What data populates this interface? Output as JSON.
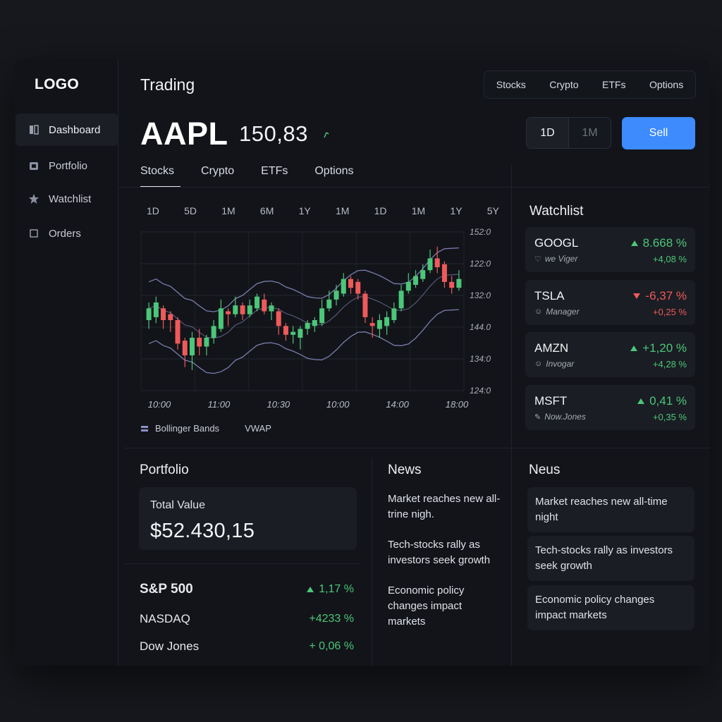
{
  "sidebar": {
    "logo": "LOGO",
    "items": [
      {
        "label": "Dashboard",
        "icon": "dashboard-icon",
        "active": true
      },
      {
        "label": "Portfolio",
        "icon": "portfolio-icon",
        "active": false
      },
      {
        "label": "Watchlist",
        "icon": "star-icon",
        "active": false
      },
      {
        "label": "Orders",
        "icon": "orders-icon",
        "active": false
      }
    ]
  },
  "header": {
    "title": "Trading",
    "top_tabs": [
      "Stocks",
      "Crypto",
      "ETFs",
      "Options"
    ]
  },
  "quote": {
    "symbol": "AAPL",
    "price": "150,83",
    "trend_icon": "up-arrow-icon",
    "range_options": [
      "1D",
      "1M"
    ],
    "range_selected": "1D",
    "sell_label": "Sell"
  },
  "sub_tabs": [
    "Stocks",
    "Crypto",
    "ETFs",
    "Options"
  ],
  "sub_tab_selected": "Stocks",
  "time_ranges": [
    "1D",
    "5D",
    "1M",
    "6M",
    "1Y",
    "1M",
    "1D",
    "1M",
    "1Y",
    "5Y"
  ],
  "chart_data": {
    "type": "candlestick",
    "y_tick_labels": [
      "152:0",
      "122:0",
      "132:0",
      "144.0",
      "134:0",
      "124:0"
    ],
    "x_tick_labels": [
      "10:00",
      "11:00",
      "10:30",
      "10:00",
      "14:00",
      "18:00"
    ],
    "grid": true,
    "candles": [
      {
        "o": 136,
        "c": 140,
        "h": 142,
        "l": 133
      },
      {
        "o": 137,
        "c": 142,
        "h": 144,
        "l": 135
      },
      {
        "o": 140,
        "c": 136,
        "h": 141,
        "l": 133
      },
      {
        "o": 138,
        "c": 136,
        "h": 139,
        "l": 132
      },
      {
        "o": 136,
        "c": 128,
        "h": 137,
        "l": 126
      },
      {
        "o": 129,
        "c": 124,
        "h": 130,
        "l": 120
      },
      {
        "o": 124,
        "c": 130,
        "h": 132,
        "l": 119
      },
      {
        "o": 130,
        "c": 127,
        "h": 133,
        "l": 124
      },
      {
        "o": 127,
        "c": 130,
        "h": 131,
        "l": 124
      },
      {
        "o": 130,
        "c": 134,
        "h": 136,
        "l": 128
      },
      {
        "o": 133,
        "c": 140,
        "h": 143,
        "l": 132
      },
      {
        "o": 139,
        "c": 138,
        "h": 140,
        "l": 134
      },
      {
        "o": 138,
        "c": 141,
        "h": 144,
        "l": 137
      },
      {
        "o": 141,
        "c": 138,
        "h": 142,
        "l": 136
      },
      {
        "o": 138,
        "c": 141,
        "h": 143,
        "l": 137
      },
      {
        "o": 140,
        "c": 144,
        "h": 145,
        "l": 139
      },
      {
        "o": 143,
        "c": 139,
        "h": 145,
        "l": 138
      },
      {
        "o": 139,
        "c": 141,
        "h": 142,
        "l": 136
      },
      {
        "o": 139,
        "c": 134,
        "h": 140,
        "l": 131
      },
      {
        "o": 134,
        "c": 131,
        "h": 135,
        "l": 129
      },
      {
        "o": 131,
        "c": 132,
        "h": 134,
        "l": 128
      },
      {
        "o": 130,
        "c": 133,
        "h": 134,
        "l": 126
      },
      {
        "o": 133,
        "c": 135,
        "h": 136,
        "l": 131
      },
      {
        "o": 134,
        "c": 136,
        "h": 137,
        "l": 132
      },
      {
        "o": 135,
        "c": 140,
        "h": 143,
        "l": 134
      },
      {
        "o": 140,
        "c": 143,
        "h": 146,
        "l": 139
      },
      {
        "o": 143,
        "c": 146,
        "h": 148,
        "l": 141
      },
      {
        "o": 145,
        "c": 150,
        "h": 152,
        "l": 144
      },
      {
        "o": 150,
        "c": 147,
        "h": 151,
        "l": 145
      },
      {
        "o": 149,
        "c": 145,
        "h": 150,
        "l": 143
      },
      {
        "o": 145,
        "c": 137,
        "h": 146,
        "l": 135
      },
      {
        "o": 135,
        "c": 134,
        "h": 137,
        "l": 130
      },
      {
        "o": 133,
        "c": 136,
        "h": 138,
        "l": 130
      },
      {
        "o": 134,
        "c": 137,
        "h": 139,
        "l": 131
      },
      {
        "o": 136,
        "c": 140,
        "h": 142,
        "l": 135
      },
      {
        "o": 140,
        "c": 146,
        "h": 148,
        "l": 139
      },
      {
        "o": 146,
        "c": 149,
        "h": 152,
        "l": 145
      },
      {
        "o": 148,
        "c": 151,
        "h": 153,
        "l": 147
      },
      {
        "o": 150,
        "c": 153,
        "h": 155,
        "l": 149
      },
      {
        "o": 153,
        "c": 157,
        "h": 160,
        "l": 152
      },
      {
        "o": 157,
        "c": 154,
        "h": 161,
        "l": 152
      },
      {
        "o": 155,
        "c": 149,
        "h": 156,
        "l": 147
      },
      {
        "o": 149,
        "c": 147,
        "h": 151,
        "l": 145
      },
      {
        "o": 147,
        "c": 150,
        "h": 153,
        "l": 146
      }
    ],
    "overlays": [
      "Bollinger Bands",
      "VWAP"
    ]
  },
  "legend": {
    "bollinger_label": "Bollinger Bands",
    "vwap_label": "VWAP"
  },
  "watchlist": {
    "title": "Watchlist",
    "items": [
      {
        "symbol": "GOOGL",
        "sub": "we Viger",
        "sub_icon": "tag-icon",
        "direction": "up",
        "pct": "8.668 %",
        "change": "+4,08 %"
      },
      {
        "symbol": "TSLA",
        "sub": "Manager",
        "sub_icon": "smiley-icon",
        "direction": "down",
        "pct": "-6,37 %",
        "change": "+0,25 %"
      },
      {
        "symbol": "AMZN",
        "sub": "Invogar",
        "sub_icon": "smiley-icon",
        "direction": "up",
        "pct": "+1,20 %",
        "change": "+4,28 %"
      },
      {
        "symbol": "MSFT",
        "sub": "Now.Jones",
        "sub_icon": "pencil-icon",
        "direction": "up",
        "pct": "0,41 %",
        "change": "+0,35 %"
      }
    ]
  },
  "portfolio": {
    "title": "Portfolio",
    "total_label": "Total Value",
    "total_value": "$52.430,15",
    "indices": [
      {
        "name": "S&P 500",
        "value": "1,17 %",
        "arrow": true
      },
      {
        "name": "NASDAQ",
        "value": "+4233 %",
        "arrow": false
      },
      {
        "name": "Dow Jones",
        "value": "+ 0,06 %",
        "arrow": false
      }
    ]
  },
  "news": {
    "title": "News",
    "items": [
      "Market reaches new all-trine nigh.",
      "Tech-stocks rally as investors seek growth",
      "Economic policy changes impact markets"
    ]
  },
  "neus": {
    "title": "Neus",
    "items": [
      "Market reaches new all-time night",
      "Tech-stocks rally as investors seek growth",
      "Economic policy changes impact markets"
    ]
  },
  "colors": {
    "up": "#4cc679",
    "down": "#ee5a5a",
    "accent": "#3d8bfd",
    "band": "#8c8fc7"
  }
}
